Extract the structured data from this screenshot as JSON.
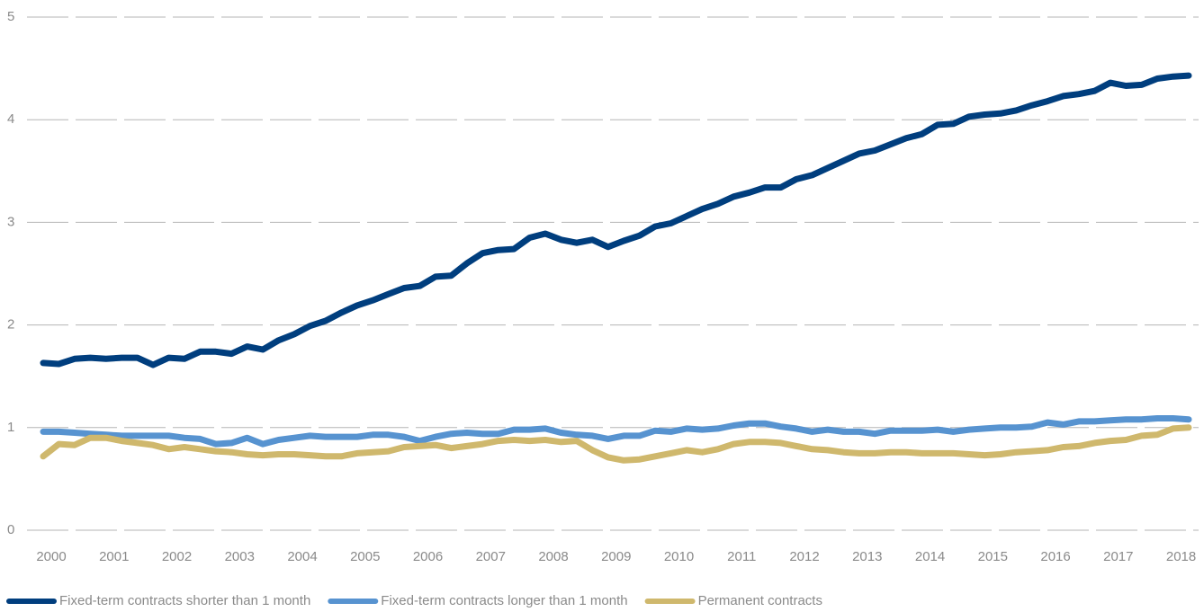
{
  "chart_data": {
    "type": "line",
    "categories": [
      "2000",
      null,
      null,
      null,
      "2001",
      null,
      null,
      null,
      "2002",
      null,
      null,
      null,
      "2003",
      null,
      null,
      null,
      "2004",
      null,
      null,
      null,
      "2005",
      null,
      null,
      null,
      "2006",
      null,
      null,
      null,
      "2007",
      null,
      null,
      null,
      "2008",
      null,
      null,
      null,
      "2009",
      null,
      null,
      null,
      "2010",
      null,
      null,
      null,
      "2011",
      null,
      null,
      null,
      "2012",
      null,
      null,
      null,
      "2013",
      null,
      null,
      null,
      "2014",
      null,
      null,
      null,
      "2015",
      null,
      null,
      null,
      "2016",
      null,
      null,
      null,
      "2017",
      null,
      null,
      null,
      "2018",
      null
    ],
    "series": [
      {
        "name": "Fixed-term contracts shorter than 1 month",
        "color": "#003e7e",
        "values": [
          1.63,
          1.62,
          1.67,
          1.68,
          1.67,
          1.68,
          1.68,
          1.61,
          1.68,
          1.67,
          1.74,
          1.74,
          1.72,
          1.79,
          1.76,
          1.85,
          1.91,
          1.99,
          2.04,
          2.12,
          2.19,
          2.24,
          2.3,
          2.36,
          2.38,
          2.47,
          2.48,
          2.6,
          2.7,
          2.73,
          2.74,
          2.85,
          2.89,
          2.83,
          2.8,
          2.83,
          2.76,
          2.82,
          2.87,
          2.96,
          2.99,
          3.06,
          3.13,
          3.18,
          3.25,
          3.29,
          3.34,
          3.34,
          3.42,
          3.46,
          3.53,
          3.6,
          3.67,
          3.7,
          3.76,
          3.82,
          3.86,
          3.95,
          3.96,
          4.03,
          4.05,
          4.06,
          4.09,
          4.14,
          4.18,
          4.23,
          4.25,
          4.28,
          4.36,
          4.33,
          4.34,
          4.4,
          4.42,
          4.43
        ]
      },
      {
        "name": "Fixed-term contracts longer than 1 month",
        "color": "#5793d0",
        "values": [
          0.96,
          0.96,
          0.95,
          0.94,
          0.93,
          0.92,
          0.92,
          0.92,
          0.92,
          0.9,
          0.89,
          0.84,
          0.85,
          0.9,
          0.84,
          0.88,
          0.9,
          0.92,
          0.91,
          0.91,
          0.91,
          0.93,
          0.93,
          0.91,
          0.87,
          0.91,
          0.94,
          0.95,
          0.94,
          0.94,
          0.98,
          0.98,
          0.99,
          0.95,
          0.93,
          0.92,
          0.89,
          0.92,
          0.92,
          0.97,
          0.96,
          0.99,
          0.98,
          0.99,
          1.02,
          1.04,
          1.04,
          1.01,
          0.99,
          0.96,
          0.98,
          0.96,
          0.96,
          0.94,
          0.97,
          0.97,
          0.97,
          0.98,
          0.96,
          0.98,
          0.99,
          1.0,
          1.0,
          1.01,
          1.05,
          1.03,
          1.06,
          1.06,
          1.07,
          1.08,
          1.08,
          1.09,
          1.09,
          1.08
        ]
      },
      {
        "name": "Permanent contracts",
        "color": "#cfb86d",
        "values": [
          0.72,
          0.84,
          0.83,
          0.9,
          0.9,
          0.87,
          0.85,
          0.83,
          0.79,
          0.81,
          0.79,
          0.77,
          0.76,
          0.74,
          0.73,
          0.74,
          0.74,
          0.73,
          0.72,
          0.72,
          0.75,
          0.76,
          0.77,
          0.81,
          0.82,
          0.83,
          0.8,
          0.82,
          0.84,
          0.87,
          0.88,
          0.87,
          0.88,
          0.86,
          0.87,
          0.78,
          0.71,
          0.68,
          0.69,
          0.72,
          0.75,
          0.78,
          0.76,
          0.79,
          0.84,
          0.86,
          0.86,
          0.85,
          0.82,
          0.79,
          0.78,
          0.76,
          0.75,
          0.75,
          0.76,
          0.76,
          0.75,
          0.75,
          0.75,
          0.74,
          0.73,
          0.74,
          0.76,
          0.77,
          0.78,
          0.81,
          0.82,
          0.85,
          0.87,
          0.88,
          0.92,
          0.93,
          0.99,
          1.0
        ]
      }
    ],
    "ylim": [
      0,
      5
    ],
    "yticks": [
      0,
      1,
      2,
      3,
      4,
      5
    ],
    "grid": true
  }
}
